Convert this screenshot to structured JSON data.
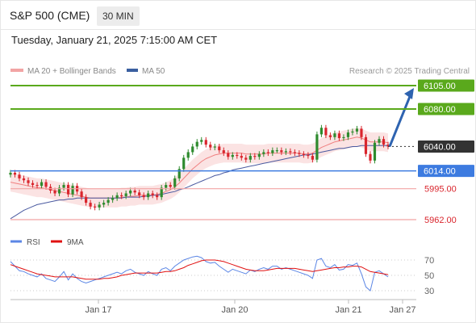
{
  "header": {
    "title": "S&P 500 (CME)",
    "timeframe": "30 MIN",
    "datetime": "Tuesday, January 21, 2025 7:15:00 AM CET"
  },
  "legend": {
    "ma20_bb": "MA 20 + Bollinger Bands",
    "ma50": "MA 50",
    "copyright": "Research © 2025 Trading Central"
  },
  "rsi_legend": {
    "rsi": "RSI",
    "ma": "9MA"
  },
  "colors": {
    "resistance": "#5aa91c",
    "pivot": "#3d7be0",
    "support": "#d9252d",
    "support_line": "#f2a4a4",
    "bollinger_fill": "#fbe3e3",
    "ma20": "#f08080",
    "ma50": "#4a5aa0",
    "candle_up": "#2e8b2e",
    "candle_down": "#d9252d",
    "arrow": "#2e63b0",
    "rsi": "#5b86e5",
    "rsi_ma": "#e01010"
  },
  "chart_data": [
    {
      "type": "candlestick",
      "x_range": [
        "Jan 16",
        "Jan 27"
      ],
      "ylim": [
        5950,
        6115
      ],
      "levels": [
        {
          "label": "6105.00",
          "value": 6105,
          "kind": "resistance"
        },
        {
          "label": "6080.00",
          "value": 6080,
          "kind": "resistance"
        },
        {
          "label": "6040.00",
          "value": 6040,
          "kind": "current"
        },
        {
          "label": "6014.00",
          "value": 6014,
          "kind": "pivot"
        },
        {
          "label": "5995.00",
          "value": 5995,
          "kind": "support"
        },
        {
          "label": "5962.00",
          "value": 5962,
          "kind": "support"
        }
      ],
      "close": [
        6012,
        6010,
        6006,
        6004,
        6001,
        5999,
        5998,
        6002,
        5997,
        5993,
        5990,
        5996,
        5999,
        5989,
        5998,
        5992,
        5986,
        5980,
        5976,
        5975,
        5978,
        5980,
        5983,
        5985,
        5988,
        5987,
        5990,
        5993,
        5991,
        5988,
        5986,
        5990,
        5988,
        5986,
        5996,
        5999,
        5997,
        6006,
        6016,
        6028,
        6034,
        6040,
        6045,
        6047,
        6042,
        6039,
        6040,
        6036,
        6033,
        6029,
        6031,
        6030,
        6028,
        6026,
        6030,
        6029,
        6032,
        6034,
        6033,
        6036,
        6036,
        6034,
        6035,
        6034,
        6033,
        6032,
        6031,
        6030,
        6026,
        6053,
        6060,
        6052,
        6050,
        6054,
        6049,
        6050,
        6055,
        6056,
        6059,
        6050,
        6032,
        6025,
        6044,
        6048,
        6042,
        6040
      ],
      "ma20": [
        6002,
        6001,
        6000,
        5999,
        5998,
        5997,
        5996,
        5996,
        5995,
        5994,
        5993,
        5992,
        5991,
        5990,
        5989,
        5988,
        5987,
        5986,
        5985,
        5985,
        5985,
        5985,
        5985,
        5985,
        5985,
        5986,
        5986,
        5987,
        5987,
        5988,
        5988,
        5988,
        5988,
        5989,
        5990,
        5992,
        5994,
        5997,
        6001,
        6006,
        6011,
        6016,
        6020,
        6024,
        6027,
        6029,
        6031,
        6032,
        6033,
        6033,
        6033,
        6033,
        6033,
        6032,
        6032,
        6032,
        6032,
        6032,
        6033,
        6033,
        6033,
        6033,
        6033,
        6033,
        6033,
        6033,
        6032,
        6032,
        6033,
        6036,
        6039,
        6041,
        6043,
        6045,
        6046,
        6047,
        6048,
        6049,
        6050,
        6049,
        6047,
        6045,
        6045,
        6045,
        6045,
        6044
      ],
      "ma50": [
        5963,
        5966,
        5969,
        5972,
        5974,
        5976,
        5978,
        5979,
        5980,
        5981,
        5982,
        5983,
        5983,
        5984,
        5984,
        5985,
        5985,
        5985,
        5985,
        5985,
        5985,
        5985,
        5985,
        5985,
        5985,
        5985,
        5986,
        5986,
        5986,
        5986,
        5987,
        5987,
        5988,
        5988,
        5989,
        5990,
        5991,
        5992,
        5994,
        5995,
        5997,
        5999,
        6001,
        6003,
        6005,
        6007,
        6009,
        6010,
        6012,
        6013,
        6015,
        6016,
        6017,
        6018,
        6019,
        6020,
        6021,
        6022,
        6023,
        6024,
        6025,
        6026,
        6027,
        6028,
        6029,
        6030,
        6031,
        6031,
        6032,
        6033,
        6034,
        6035,
        6036,
        6037,
        6038,
        6038,
        6039,
        6040,
        6040,
        6041,
        6041,
        6041,
        6041,
        6041,
        6041,
        6041
      ],
      "bb_width": 10,
      "forecast": {
        "from": 6040,
        "to": 6105
      }
    },
    {
      "type": "line",
      "title": "RSI",
      "ylim": [
        20,
        80
      ],
      "yticks": [
        30,
        50,
        70
      ],
      "rsi": [
        68,
        62,
        56,
        55,
        52,
        50,
        48,
        52,
        46,
        44,
        42,
        48,
        55,
        44,
        52,
        46,
        42,
        40,
        42,
        44,
        46,
        48,
        50,
        52,
        54,
        52,
        56,
        58,
        54,
        52,
        50,
        55,
        52,
        50,
        58,
        60,
        56,
        62,
        66,
        70,
        72,
        74,
        75,
        73,
        68,
        66,
        67,
        62,
        58,
        54,
        58,
        56,
        54,
        52,
        57,
        55,
        58,
        60,
        58,
        62,
        62,
        58,
        60,
        58,
        56,
        54,
        52,
        50,
        46,
        70,
        72,
        62,
        60,
        64,
        57,
        58,
        64,
        63,
        66,
        52,
        35,
        30,
        54,
        56,
        52,
        48
      ],
      "ma9": [
        64,
        62,
        60,
        58,
        56,
        54,
        52,
        51,
        50,
        49,
        48,
        48,
        48,
        48,
        48,
        47,
        46,
        45,
        45,
        45,
        45,
        46,
        46,
        47,
        48,
        50,
        51,
        52,
        53,
        53,
        53,
        53,
        53,
        53,
        54,
        55,
        55,
        56,
        58,
        60,
        63,
        65,
        67,
        69,
        70,
        70,
        70,
        69,
        68,
        66,
        64,
        62,
        60,
        58,
        57,
        56,
        56,
        56,
        57,
        58,
        59,
        59,
        59,
        59,
        59,
        58,
        57,
        56,
        55,
        56,
        57,
        58,
        59,
        60,
        60,
        61,
        61,
        62,
        62,
        61,
        58,
        55,
        54,
        53,
        52,
        51
      ]
    }
  ],
  "x_axis": {
    "ticks": [
      "Jan 17",
      "Jan 20",
      "Jan 21",
      "Jan 27"
    ]
  }
}
